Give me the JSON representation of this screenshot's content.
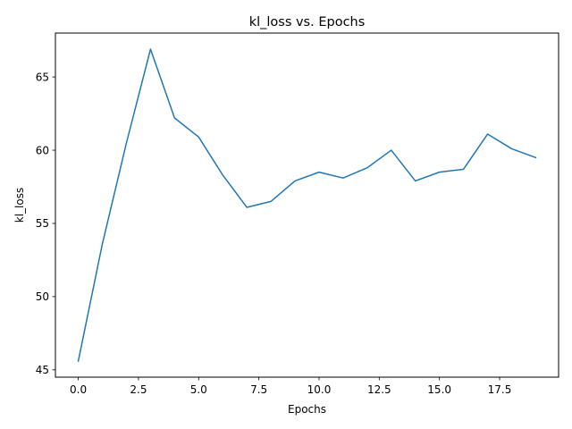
{
  "chart_data": {
    "type": "line",
    "title": "kl_loss vs. Epochs",
    "xlabel": "Epochs",
    "ylabel": "kl_loss",
    "xlim": [
      -0.95,
      19.95
    ],
    "ylim": [
      44.5,
      68.0
    ],
    "xticks": [
      0.0,
      2.5,
      5.0,
      7.5,
      10.0,
      12.5,
      15.0,
      17.5
    ],
    "xtick_labels": [
      "0.0",
      "2.5",
      "5.0",
      "7.5",
      "10.0",
      "12.5",
      "15.0",
      "17.5"
    ],
    "yticks": [
      45,
      50,
      55,
      60,
      65
    ],
    "ytick_labels": [
      "45",
      "50",
      "55",
      "60",
      "65"
    ],
    "grid": false,
    "legend": "none",
    "series": [
      {
        "color": "#1f77b4",
        "x": [
          0,
          1,
          2,
          3,
          4,
          5,
          6,
          7,
          8,
          9,
          10,
          11,
          12,
          13,
          14,
          15,
          16,
          17,
          18,
          19
        ],
        "y": [
          45.6,
          53.6,
          60.5,
          66.9,
          62.2,
          60.9,
          58.3,
          56.1,
          56.5,
          57.9,
          58.5,
          58.1,
          58.8,
          60.0,
          57.9,
          58.5,
          58.7,
          61.1,
          60.1,
          59.5
        ]
      }
    ]
  }
}
